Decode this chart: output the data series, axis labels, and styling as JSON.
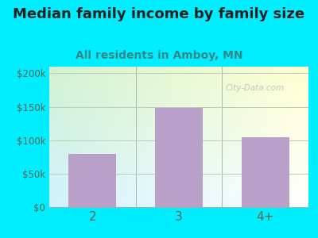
{
  "title": "Median family income by family size",
  "subtitle": "All residents in Amboy, MN",
  "categories": [
    "2",
    "3",
    "4+"
  ],
  "values": [
    80000,
    148000,
    105000
  ],
  "bar_color": "#b8a0c8",
  "background_color": "#00eeff",
  "title_fontsize": 13,
  "subtitle_fontsize": 10,
  "ylabel_ticks": [
    0,
    50000,
    100000,
    150000,
    200000
  ],
  "ylabel_labels": [
    "$0",
    "$50k",
    "$100k",
    "$150k",
    "$200k"
  ],
  "ylim": [
    0,
    210000
  ],
  "watermark": "City-Data.com",
  "title_color": "#222222",
  "subtitle_color": "#338888",
  "tick_color": "#556655",
  "grid_color": "#bbccbb"
}
